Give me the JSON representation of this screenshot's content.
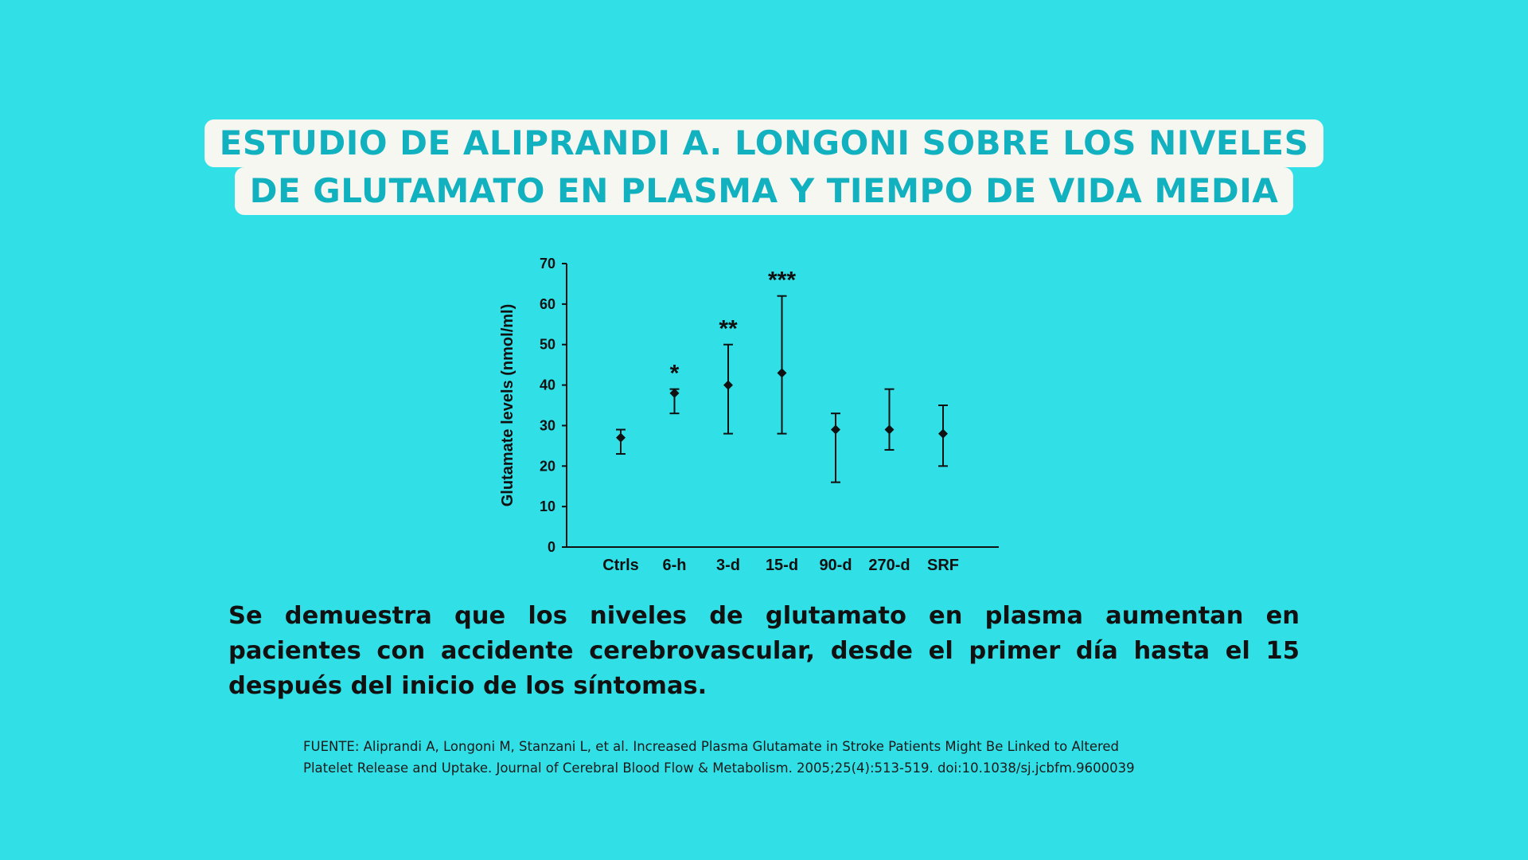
{
  "title": {
    "line1": "ESTUDIO DE ALIPRANDI A. LONGONI SOBRE LOS NIVELES",
    "line2": "DE GLUTAMATO EN PLASMA Y TIEMPO DE VIDA MEDIA"
  },
  "description": "Se demuestra que los niveles de glutamato en plasma aumentan en pacientes con accidente cerebrovascular, desde el primer día hasta el 15 después del inicio de los síntomas.",
  "source": {
    "line1": "FUENTE: Aliprandi A, Longoni M, Stanzani L, et al. Increased Plasma Glutamate in Stroke Patients Might Be Linked to Altered",
    "line2": "Platelet Release and Uptake. Journal of Cerebral Blood Flow & Metabolism. 2005;25(4):513-519. doi:10.1038/sj.jcbfm.9600039"
  },
  "colors": {
    "background": "#31e0e7",
    "title_text": "#12b1c0",
    "title_box": "#f6f7f1",
    "marks": "#111111"
  },
  "chart_data": {
    "type": "scatter",
    "title": "",
    "xlabel": "",
    "ylabel": "Glutamate levels (nmol/ml)",
    "ylim": [
      0,
      70
    ],
    "yticks": [
      0,
      10,
      20,
      30,
      40,
      50,
      60,
      70
    ],
    "grid": false,
    "categories": [
      "Ctrls",
      "6-h",
      "3-d",
      "15-d",
      "90-d",
      "270-d",
      "SRF"
    ],
    "values": [
      27,
      38,
      40,
      43,
      29,
      29,
      28
    ],
    "error_low": [
      23,
      33,
      28,
      28,
      16,
      24,
      20
    ],
    "error_high": [
      29,
      39,
      50,
      62,
      33,
      39,
      35
    ],
    "significance": [
      "",
      "*",
      "**",
      "***",
      "",
      "",
      ""
    ]
  }
}
